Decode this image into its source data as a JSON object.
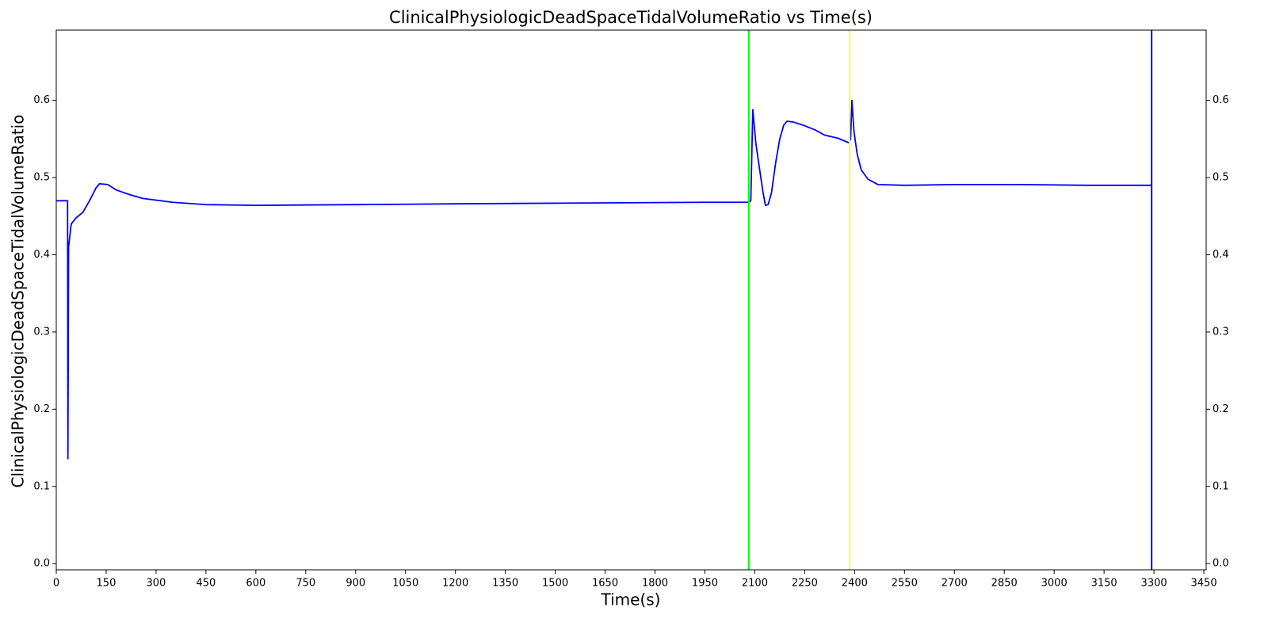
{
  "chart_data": {
    "type": "line",
    "title": "ClinicalPhysiologicDeadSpaceTidalVolumeRatio vs Time(s)",
    "xlabel": "Time(s)",
    "ylabel": "ClinicalPhysiologicDeadSpaceTidalVolumeRatio",
    "x": [
      0,
      34,
      35,
      37,
      45,
      60,
      80,
      100,
      120,
      130,
      155,
      180,
      220,
      260,
      350,
      450,
      600,
      900,
      1200,
      1550,
      1950,
      2082,
      2088,
      2094,
      2103,
      2113,
      2125,
      2132,
      2140,
      2150,
      2163,
      2175,
      2187,
      2197,
      2215,
      2245,
      2280,
      2310,
      2350,
      2383,
      2388,
      2392,
      2398,
      2408,
      2420,
      2440,
      2470,
      2550,
      2700,
      2900,
      3100,
      3293
    ],
    "series": [
      {
        "name": "ClinicalPhysiologicDeadSpaceTidalVolumeRatio",
        "color": "#0000ff",
        "values": [
          0.47,
          0.47,
          0.136,
          0.41,
          0.44,
          0.448,
          0.455,
          0.47,
          0.487,
          0.492,
          0.491,
          0.484,
          0.478,
          0.473,
          0.468,
          0.465,
          0.464,
          0.465,
          0.466,
          0.467,
          0.468,
          0.468,
          0.47,
          0.588,
          0.545,
          0.515,
          0.48,
          0.464,
          0.465,
          0.48,
          0.52,
          0.55,
          0.568,
          0.573,
          0.572,
          0.568,
          0.562,
          0.555,
          0.551,
          0.545,
          0.55,
          0.6,
          0.56,
          0.53,
          0.51,
          0.498,
          0.491,
          0.49,
          0.491,
          0.491,
          0.49,
          0.49
        ]
      }
    ],
    "vlines": [
      {
        "x": 2082,
        "color": "#00ff00"
      },
      {
        "x": 2385,
        "color": "#ffff00"
      },
      {
        "x": 3293,
        "color": "#0000ff"
      }
    ],
    "xlim": [
      0,
      3457
    ],
    "xticks": [
      0,
      150,
      300,
      450,
      600,
      750,
      900,
      1050,
      1200,
      1350,
      1500,
      1650,
      1800,
      1950,
      2100,
      2250,
      2400,
      2550,
      2700,
      2850,
      3000,
      3150,
      3300,
      3450
    ],
    "ylim": [
      -0.008,
      0.691
    ],
    "yticks": [
      {
        "value": 0,
        "label": "0.0"
      },
      0.1,
      0.2,
      0.3,
      0.4,
      0.5,
      0.6
    ],
    "y2lim": [
      -0.008,
      0.691
    ],
    "y2ticks": [
      {
        "value": 0,
        "label": "0.0"
      },
      0.1,
      0.2,
      0.3,
      0.4,
      0.5,
      0.6
    ]
  }
}
